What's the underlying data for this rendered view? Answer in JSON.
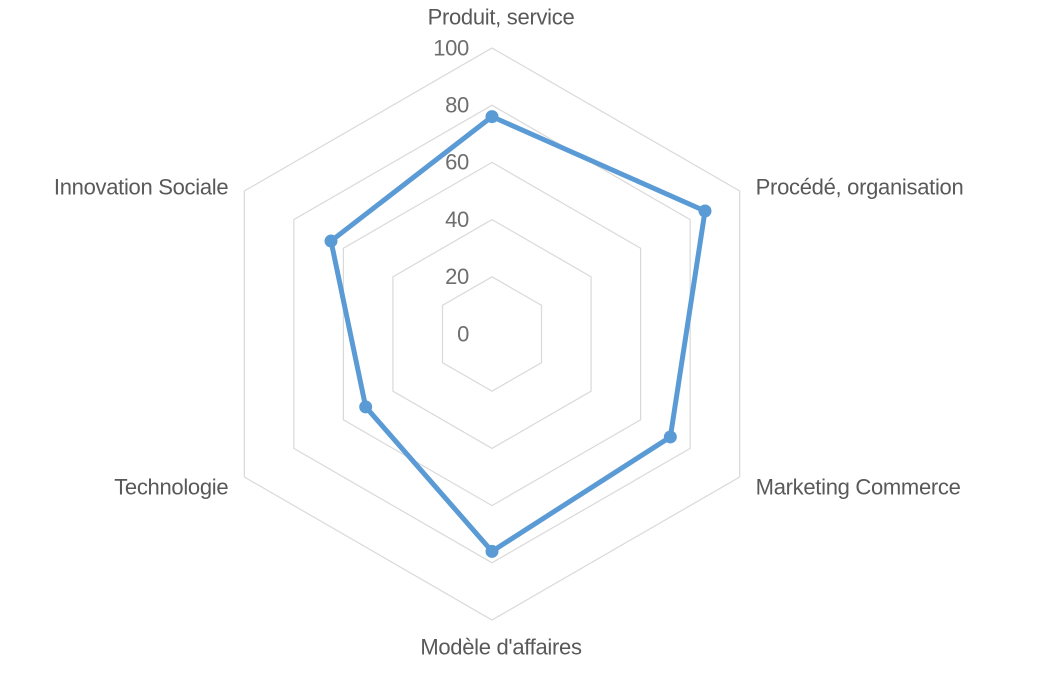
{
  "chart_data": {
    "type": "radar",
    "categories": [
      "Produit, service",
      "Procédé, organisation",
      "Marketing Commerce",
      "Modèle d'affaires",
      "Technologie",
      "Innovation Sociale"
    ],
    "values": [
      76,
      86,
      72,
      76,
      51,
      65
    ],
    "axis": {
      "min": 0,
      "max": 100,
      "tick_interval": 20,
      "ring_values": [
        0,
        20,
        40,
        60,
        80,
        100
      ],
      "tick_labels": [
        "0",
        "20",
        "40",
        "60",
        "80",
        "100"
      ]
    },
    "grid": "concentric-hexagons",
    "spokes": "none",
    "legend": "none",
    "title": "",
    "marker": "circle",
    "colors": {
      "line": "#5B9BD5",
      "marker": "#5B9BD5",
      "grid": "#D9D9D9",
      "category_label": "#595959",
      "tick_label": "#6e6e6e",
      "background": "#ffffff"
    }
  }
}
